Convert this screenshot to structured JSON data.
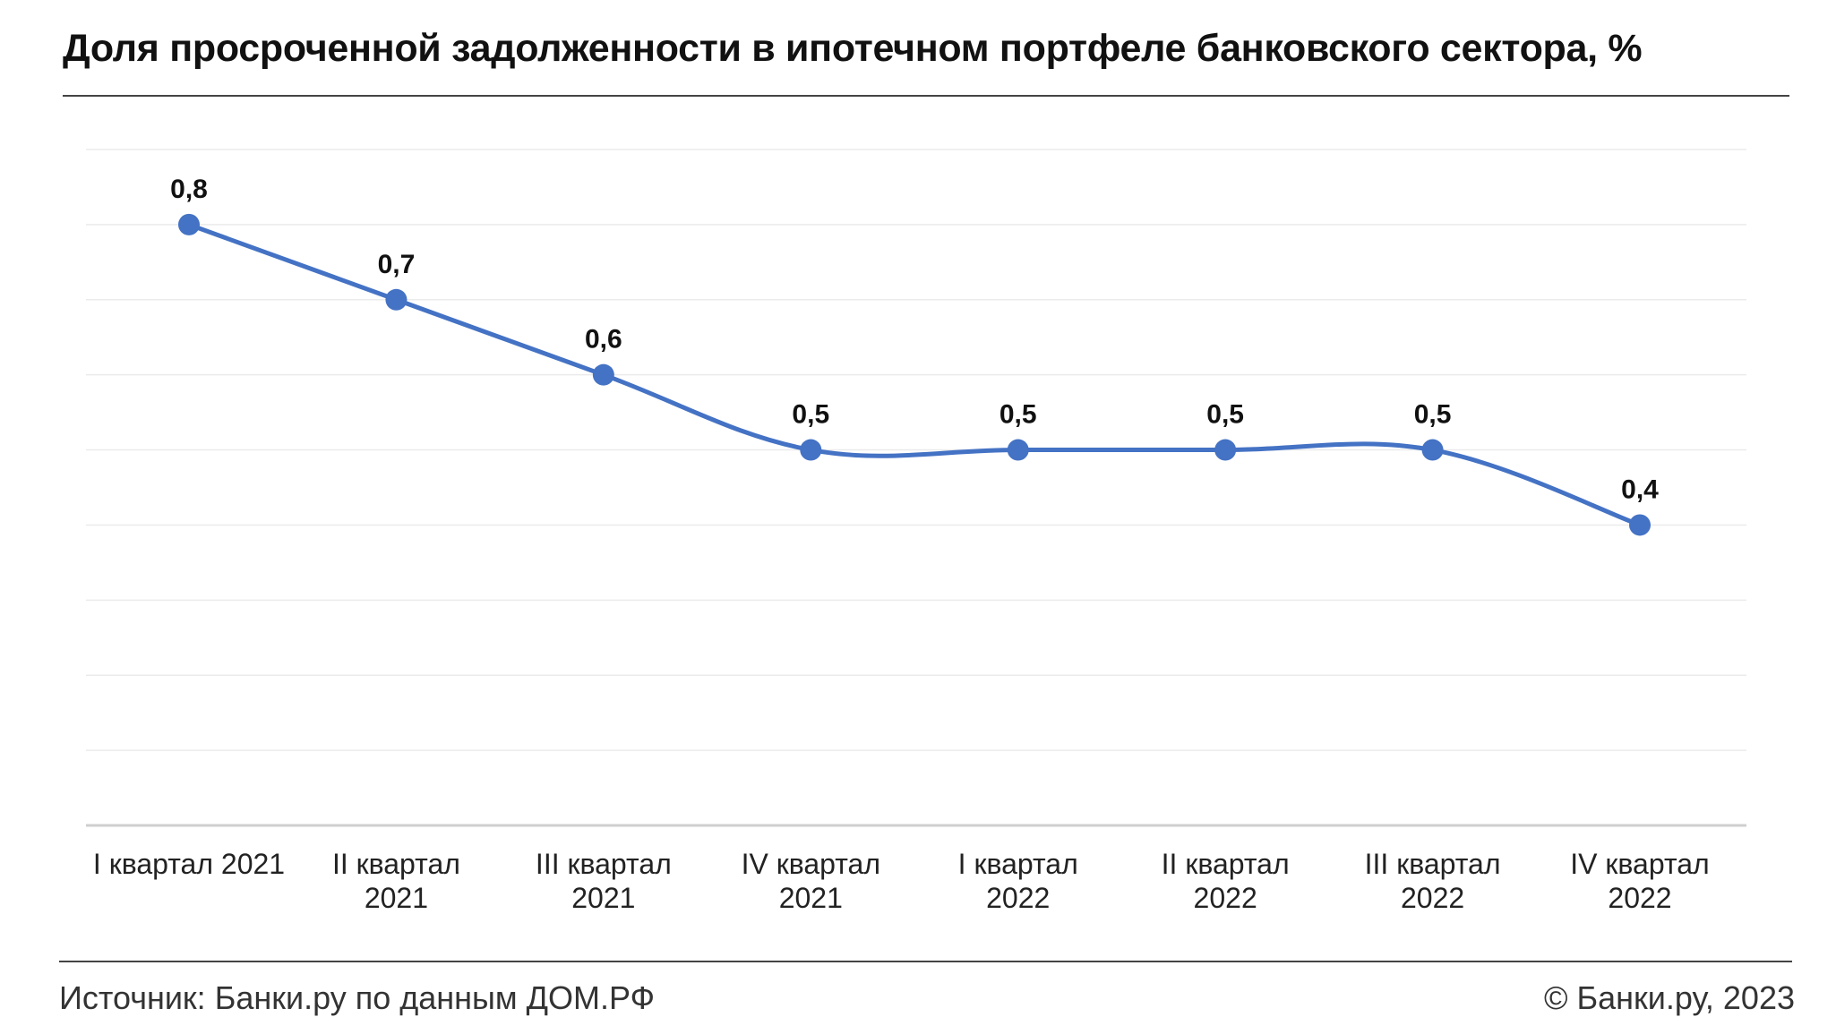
{
  "header": {
    "title": "Доля просроченной задолженности в ипотечном портфеле банковского сектора, %"
  },
  "footer": {
    "source": "Источник: Банки.ру по данным ДОМ.РФ",
    "copyright": "© Банки.ру, 2023"
  },
  "colors": {
    "line": "#4472c4",
    "grid": "#ebebeb",
    "axis": "#cfcfcf",
    "text": "#111111"
  },
  "chart_data": {
    "type": "line",
    "title": "Доля просроченной задолженности в ипотечном портфеле банковского сектора, %",
    "xlabel": "",
    "ylabel": "",
    "categories": [
      [
        "I квартал 2021"
      ],
      [
        "II квартал",
        "2021"
      ],
      [
        "III квартал",
        "2021"
      ],
      [
        "IV квартал",
        "2021"
      ],
      [
        "I квартал",
        "2022"
      ],
      [
        "II квартал",
        "2022"
      ],
      [
        "III квартал",
        "2022"
      ],
      [
        "IV квартал",
        "2022"
      ]
    ],
    "values": [
      0.8,
      0.7,
      0.6,
      0.5,
      0.5,
      0.5,
      0.5,
      0.4
    ],
    "value_labels": [
      "0,8",
      "0,7",
      "0,6",
      "0,5",
      "0,5",
      "0,5",
      "0,5",
      "0,4"
    ],
    "ylim": [
      0,
      0.9
    ],
    "grid": true,
    "smooth": true,
    "legend": "none"
  }
}
